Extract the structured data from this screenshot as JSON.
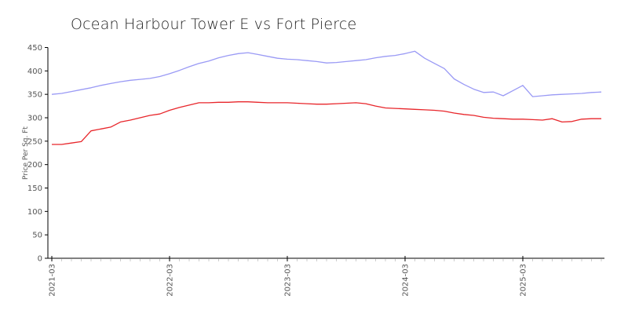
{
  "chart_data": {
    "type": "line",
    "title": "Ocean Harbour Tower E vs Fort Pierce",
    "xlabel": "",
    "ylabel": "Price Per Sq. Ft",
    "ylim": [
      0,
      450
    ],
    "yticks": [
      0,
      50,
      100,
      150,
      200,
      250,
      300,
      350,
      400,
      450
    ],
    "xtick_labels": [
      "2021-03",
      "2022-03",
      "2023-03",
      "2024-03",
      "2025-03"
    ],
    "grid": false,
    "legend": "none",
    "x_start": "2021-03",
    "x_end": "2025-11",
    "x": [
      "2021-03",
      "2021-04",
      "2021-05",
      "2021-06",
      "2021-07",
      "2021-08",
      "2021-09",
      "2021-10",
      "2021-11",
      "2021-12",
      "2022-01",
      "2022-02",
      "2022-03",
      "2022-04",
      "2022-05",
      "2022-06",
      "2022-07",
      "2022-08",
      "2022-09",
      "2022-10",
      "2022-11",
      "2022-12",
      "2023-01",
      "2023-02",
      "2023-03",
      "2023-04",
      "2023-05",
      "2023-06",
      "2023-07",
      "2023-08",
      "2023-09",
      "2023-10",
      "2023-11",
      "2023-12",
      "2024-01",
      "2024-02",
      "2024-03",
      "2024-04",
      "2024-05",
      "2024-06",
      "2024-07",
      "2024-08",
      "2024-09",
      "2024-10",
      "2024-11",
      "2024-12",
      "2025-01",
      "2025-02",
      "2025-03",
      "2025-04",
      "2025-05",
      "2025-06",
      "2025-07",
      "2025-08",
      "2025-09",
      "2025-10",
      "2025-11"
    ],
    "series": [
      {
        "name": "Ocean Harbour Tower E",
        "color": "#9a9af5",
        "values": [
          350,
          352,
          356,
          360,
          364,
          369,
          373,
          377,
          380,
          382,
          384,
          388,
          394,
          401,
          409,
          416,
          421,
          428,
          433,
          437,
          439,
          435,
          431,
          427,
          425,
          424,
          422,
          420,
          417,
          418,
          420,
          422,
          424,
          428,
          431,
          433,
          437,
          442,
          427,
          416,
          405,
          383,
          371,
          361,
          354,
          355,
          347,
          358,
          369,
          345,
          347,
          349,
          350,
          351,
          352,
          354,
          355
        ]
      },
      {
        "name": "Fort Pierce",
        "color": "#e8262b",
        "values": [
          243,
          243,
          246,
          249,
          272,
          276,
          280,
          291,
          295,
          300,
          305,
          308,
          316,
          322,
          327,
          332,
          332,
          333,
          333,
          334,
          334,
          333,
          332,
          332,
          332,
          331,
          330,
          329,
          329,
          330,
          331,
          332,
          330,
          325,
          321,
          320,
          319,
          318,
          317,
          316,
          314,
          310,
          307,
          305,
          301,
          299,
          298,
          297,
          297,
          296,
          295,
          298,
          291,
          292,
          297,
          298,
          298
        ]
      }
    ]
  }
}
